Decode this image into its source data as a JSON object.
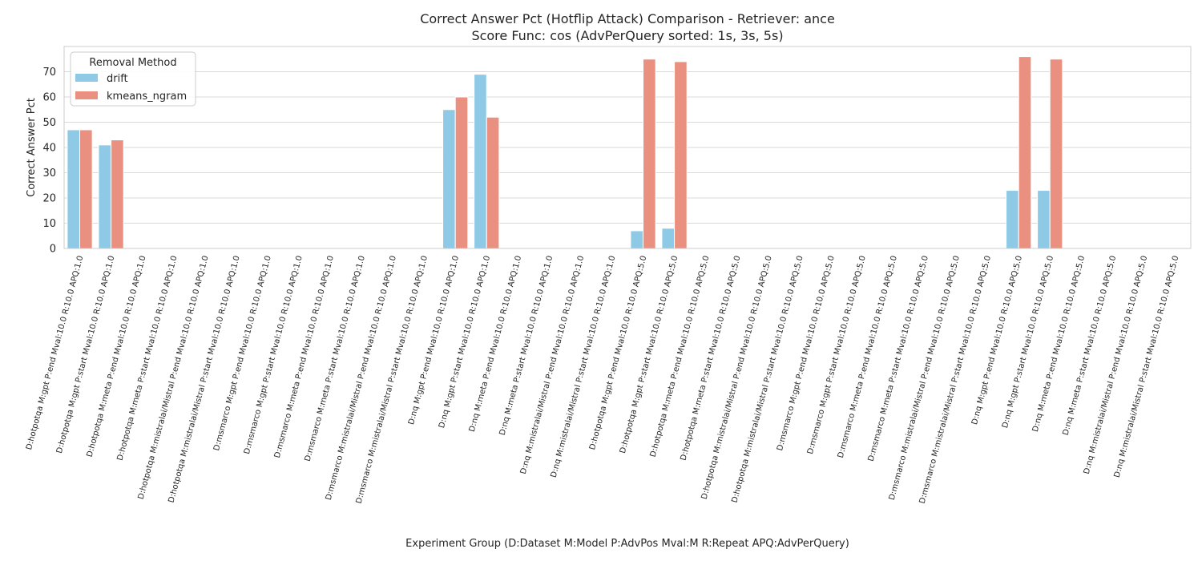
{
  "chart_data": {
    "type": "bar",
    "title": "Correct Answer Pct (Hotflip Attack) Comparison - Retriever: ance",
    "subtitle": "Score Func: cos (AdvPerQuery sorted: 1s, 3s, 5s)",
    "xlabel": "Experiment Group (D:Dataset M:Model P:AdvPos Mval:M R:Repeat APQ:AdvPerQuery)",
    "ylabel": "Correct Answer Pct",
    "ylim": [
      0,
      80
    ],
    "yticks": [
      0,
      10,
      20,
      30,
      40,
      50,
      60,
      70
    ],
    "grid": true,
    "legend": {
      "title": "Removal Method",
      "position": "top-left"
    },
    "categories": [
      "D:hotpotqa M:gpt P:end Mval:10.0 R:10.0 APQ:1.0",
      "D:hotpotqa M:gpt P:start Mval:10.0 R:10.0 APQ:1.0",
      "D:hotpotqa M:meta P:end Mval:10.0 R:10.0 APQ:1.0",
      "D:hotpotqa M:meta P:start Mval:10.0 R:10.0 APQ:1.0",
      "D:hotpotqa M:mistralai/Mistral P:end Mval:10.0 R:10.0 APQ:1.0",
      "D:hotpotqa M:mistralai/Mistral P:start Mval:10.0 R:10.0 APQ:1.0",
      "D:msmarco M:gpt P:end Mval:10.0 R:10.0 APQ:1.0",
      "D:msmarco M:gpt P:start Mval:10.0 R:10.0 APQ:1.0",
      "D:msmarco M:meta P:end Mval:10.0 R:10.0 APQ:1.0",
      "D:msmarco M:meta P:start Mval:10.0 R:10.0 APQ:1.0",
      "D:msmarco M:mistralai/Mistral P:end Mval:10.0 R:10.0 APQ:1.0",
      "D:msmarco M:mistralai/Mistral P:start Mval:10.0 R:10.0 APQ:1.0",
      "D:nq M:gpt P:end Mval:10.0 R:10.0 APQ:1.0",
      "D:nq M:gpt P:start Mval:10.0 R:10.0 APQ:1.0",
      "D:nq M:meta P:end Mval:10.0 R:10.0 APQ:1.0",
      "D:nq M:meta P:start Mval:10.0 R:10.0 APQ:1.0",
      "D:nq M:mistralai/Mistral P:end Mval:10.0 R:10.0 APQ:1.0",
      "D:nq M:mistralai/Mistral P:start Mval:10.0 R:10.0 APQ:1.0",
      "D:hotpotqa M:gpt P:end Mval:10.0 R:10.0 APQ:5.0",
      "D:hotpotqa M:gpt P:start Mval:10.0 R:10.0 APQ:5.0",
      "D:hotpotqa M:meta P:end Mval:10.0 R:10.0 APQ:5.0",
      "D:hotpotqa M:meta P:start Mval:10.0 R:10.0 APQ:5.0",
      "D:hotpotqa M:mistralai/Mistral P:end Mval:10.0 R:10.0 APQ:5.0",
      "D:hotpotqa M:mistralai/Mistral P:start Mval:10.0 R:10.0 APQ:5.0",
      "D:msmarco M:gpt P:end Mval:10.0 R:10.0 APQ:5.0",
      "D:msmarco M:gpt P:start Mval:10.0 R:10.0 APQ:5.0",
      "D:msmarco M:meta P:end Mval:10.0 R:10.0 APQ:5.0",
      "D:msmarco M:meta P:start Mval:10.0 R:10.0 APQ:5.0",
      "D:msmarco M:mistralai/Mistral P:end Mval:10.0 R:10.0 APQ:5.0",
      "D:msmarco M:mistralai/Mistral P:start Mval:10.0 R:10.0 APQ:5.0",
      "D:nq M:gpt P:end Mval:10.0 R:10.0 APQ:5.0",
      "D:nq M:gpt P:start Mval:10.0 R:10.0 APQ:5.0",
      "D:nq M:meta P:end Mval:10.0 R:10.0 APQ:5.0",
      "D:nq M:meta P:start Mval:10.0 R:10.0 APQ:5.0",
      "D:nq M:mistralai/Mistral P:end Mval:10.0 R:10.0 APQ:5.0",
      "D:nq M:mistralai/Mistral P:start Mval:10.0 R:10.0 APQ:5.0"
    ],
    "series": [
      {
        "name": "drift",
        "color": "#8ecae6",
        "values": [
          47,
          41,
          0,
          0,
          0,
          0,
          0,
          0,
          0,
          0,
          0,
          0,
          55,
          69,
          0,
          0,
          0,
          0,
          7,
          8,
          0,
          0,
          0,
          0,
          0,
          0,
          0,
          0,
          0,
          0,
          23,
          23,
          0,
          0,
          0,
          0
        ]
      },
      {
        "name": "kmeans_ngram",
        "color": "#e99080",
        "values": [
          47,
          43,
          0,
          0,
          0,
          0,
          0,
          0,
          0,
          0,
          0,
          0,
          60,
          52,
          0,
          0,
          0,
          0,
          75,
          74,
          0,
          0,
          0,
          0,
          0,
          0,
          0,
          0,
          0,
          0,
          76,
          75,
          0,
          0,
          0,
          0
        ]
      }
    ]
  }
}
